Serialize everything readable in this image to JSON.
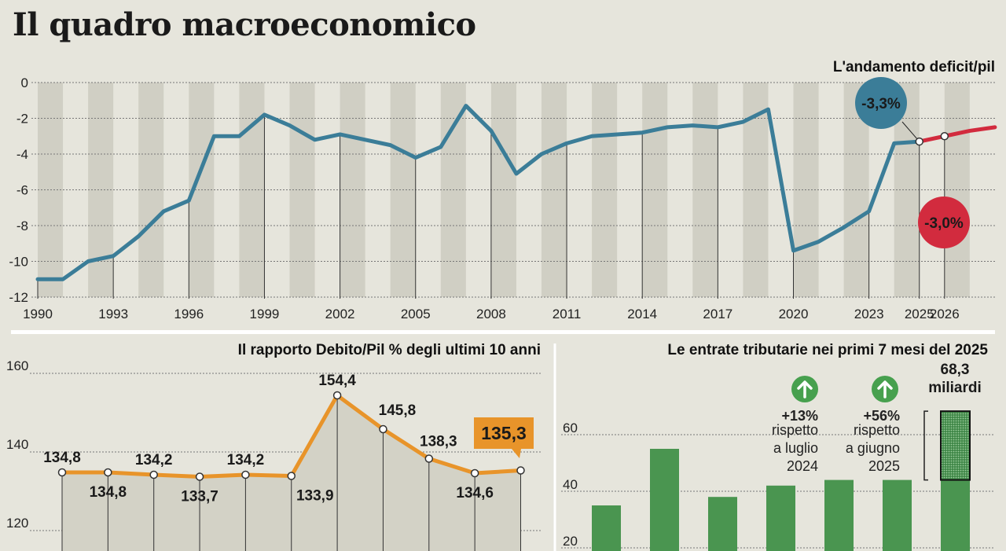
{
  "page_title": "Il quadro macroeconomico",
  "colors": {
    "background": "#e6e5dc",
    "stripe": "#d0cfc4",
    "deficit_line": "#3b7d98",
    "forecast_line": "#d22b3e",
    "debt_line": "#e8942a",
    "bars": "#4a9550",
    "up_arrow": "#47a04e"
  },
  "chart_data": [
    {
      "id": "deficit",
      "type": "line",
      "title": "L'andamento deficit/pil",
      "x_ticks": [
        "1990",
        "1993",
        "1996",
        "1999",
        "2002",
        "2005",
        "2008",
        "2011",
        "2014",
        "2017",
        "2020",
        "2023",
        "2025",
        "2026"
      ],
      "y_ticks": [
        "0",
        "-2",
        "-4",
        "-6",
        "-8",
        "-10",
        "-12"
      ],
      "ylim": [
        -12,
        0
      ],
      "xlim": [
        1990,
        2028
      ],
      "grid": true,
      "series": [
        {
          "x": [
            1990,
            1991,
            1992,
            1993,
            1994,
            1995,
            1996,
            1997,
            1998,
            1999,
            2000,
            2001,
            2002,
            2003,
            2004,
            2005,
            2006,
            2007,
            2008,
            2009,
            2010,
            2011,
            2012,
            2013,
            2014,
            2015,
            2016,
            2017,
            2018,
            2019,
            2020,
            2021,
            2022,
            2023,
            2024,
            2025
          ],
          "y": [
            -11,
            -11,
            -10,
            -9.7,
            -8.6,
            -7.2,
            -6.6,
            -3,
            -3,
            -1.8,
            -2.4,
            -3.2,
            -2.9,
            -3.2,
            -3.5,
            -4.2,
            -3.6,
            -1.3,
            -2.7,
            -5.1,
            -4.0,
            -3.4,
            -3.0,
            -2.9,
            -2.8,
            -2.5,
            -2.4,
            -2.5,
            -2.2,
            -1.5,
            -9.4,
            -8.9,
            -8.1,
            -7.2,
            -3.4,
            -3.3
          ]
        },
        {
          "x": [
            2025,
            2026,
            2027,
            2028
          ],
          "y": [
            -3.3,
            -3.0,
            -2.7,
            -2.5
          ]
        }
      ],
      "annotations": [
        "-3,3%",
        "-3,0%"
      ]
    },
    {
      "id": "debt",
      "type": "line",
      "title": "Il rapporto Debito/Pil % degli ultimi 10 anni",
      "y_ticks": [
        "160",
        "140",
        "120"
      ],
      "ylim": [
        115,
        170
      ],
      "values": [
        134.8,
        134.8,
        134.2,
        133.7,
        134.2,
        133.9,
        154.4,
        145.8,
        138.3,
        134.6,
        135.3
      ],
      "labels": [
        "134,8",
        "134,8",
        "134,2",
        "133,7",
        "134,2",
        "133,9",
        "154,4",
        "145,8",
        "138,3",
        "134,6",
        "135,3"
      ]
    },
    {
      "id": "revenue",
      "type": "bar",
      "title": "Le entrate tributarie nei primi 7 mesi del 2025",
      "y_ticks": [
        "60",
        "40",
        "20"
      ],
      "ylim": [
        20,
        75
      ],
      "values": [
        35,
        55,
        38,
        42,
        44,
        44,
        44
      ],
      "highlight": {
        "value": 68.3,
        "label_value": "68,3",
        "label_unit": "miliardi"
      },
      "notes": [
        {
          "pct": "+13%",
          "lines": [
            "rispetto",
            "a luglio",
            "2024"
          ]
        },
        {
          "pct": "+56%",
          "lines": [
            "rispetto",
            "a giugno",
            "2025"
          ]
        }
      ]
    }
  ]
}
